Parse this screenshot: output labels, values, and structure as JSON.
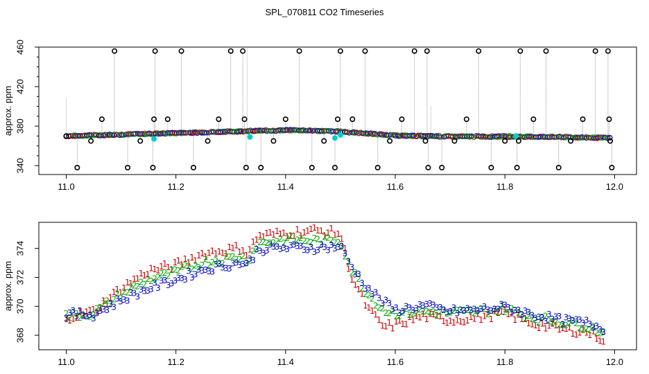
{
  "title": "SPL_070811  CO2 Timeseries",
  "chart_data": [
    {
      "type": "scatter",
      "ylabel": "approx. ppm",
      "xlim": [
        10.95,
        12.04
      ],
      "ylim": [
        331,
        460
      ],
      "xticks": [
        11.0,
        11.2,
        11.4,
        11.6,
        11.8,
        12.0
      ],
      "xtick_labels": [
        "11.0",
        "11.2",
        "11.4",
        "11.6",
        "11.8",
        "12.0"
      ],
      "yticks": [
        340,
        380,
        420,
        460
      ],
      "ytick_labels": [
        "340",
        "380",
        "420",
        "460"
      ],
      "baseline": [
        [
          11.0,
          370.0
        ],
        [
          11.1,
          371.5
        ],
        [
          11.2,
          373.0
        ],
        [
          11.33,
          375.0
        ],
        [
          11.42,
          376.0
        ],
        [
          11.5,
          374.5
        ],
        [
          11.6,
          370.5
        ],
        [
          11.7,
          369.5
        ],
        [
          11.8,
          369.5
        ],
        [
          11.9,
          369.0
        ],
        [
          11.99,
          368.0
        ]
      ],
      "series": [
        {
          "name": "1",
          "color": "#cc0000",
          "symbol": "circle"
        },
        {
          "name": "2",
          "color": "#00aa00",
          "symbol": "circle"
        },
        {
          "name": "3",
          "color": "#0000cc",
          "symbol": "circle"
        }
      ],
      "outliers": [
        {
          "x": 11.0,
          "y": 370
        },
        {
          "x": 11.02,
          "y": 338
        },
        {
          "x": 11.045,
          "y": 365
        },
        {
          "x": 11.065,
          "y": 387
        },
        {
          "x": 11.088,
          "y": 456
        },
        {
          "x": 11.112,
          "y": 338
        },
        {
          "x": 11.135,
          "y": 365
        },
        {
          "x": 11.158,
          "y": 338
        },
        {
          "x": 11.16,
          "y": 387
        },
        {
          "x": 11.162,
          "y": 456
        },
        {
          "x": 11.185,
          "y": 387
        },
        {
          "x": 11.21,
          "y": 456
        },
        {
          "x": 11.232,
          "y": 338
        },
        {
          "x": 11.258,
          "y": 365
        },
        {
          "x": 11.278,
          "y": 387
        },
        {
          "x": 11.3,
          "y": 456
        },
        {
          "x": 11.322,
          "y": 456
        },
        {
          "x": 11.325,
          "y": 387
        },
        {
          "x": 11.328,
          "y": 338
        },
        {
          "x": 11.355,
          "y": 338
        },
        {
          "x": 11.378,
          "y": 365
        },
        {
          "x": 11.4,
          "y": 387
        },
        {
          "x": 11.425,
          "y": 456
        },
        {
          "x": 11.448,
          "y": 338
        },
        {
          "x": 11.47,
          "y": 365
        },
        {
          "x": 11.49,
          "y": 338
        },
        {
          "x": 11.495,
          "y": 387
        },
        {
          "x": 11.5,
          "y": 456
        },
        {
          "x": 11.522,
          "y": 387
        },
        {
          "x": 11.545,
          "y": 456
        },
        {
          "x": 11.568,
          "y": 338
        },
        {
          "x": 11.59,
          "y": 365
        },
        {
          "x": 11.612,
          "y": 387
        },
        {
          "x": 11.635,
          "y": 456
        },
        {
          "x": 11.655,
          "y": 365
        },
        {
          "x": 11.658,
          "y": 456
        },
        {
          "x": 11.66,
          "y": 338
        },
        {
          "x": 11.685,
          "y": 338
        },
        {
          "x": 11.708,
          "y": 365
        },
        {
          "x": 11.73,
          "y": 387
        },
        {
          "x": 11.752,
          "y": 456
        },
        {
          "x": 11.775,
          "y": 338
        },
        {
          "x": 11.8,
          "y": 365
        },
        {
          "x": 11.822,
          "y": 338
        },
        {
          "x": 11.825,
          "y": 365
        },
        {
          "x": 11.828,
          "y": 456
        },
        {
          "x": 11.852,
          "y": 387
        },
        {
          "x": 11.875,
          "y": 456
        },
        {
          "x": 11.898,
          "y": 338
        },
        {
          "x": 11.92,
          "y": 365
        },
        {
          "x": 11.942,
          "y": 387
        },
        {
          "x": 11.965,
          "y": 456
        },
        {
          "x": 11.988,
          "y": 456
        },
        {
          "x": 11.99,
          "y": 387
        },
        {
          "x": 11.992,
          "y": 365
        },
        {
          "x": 11.995,
          "y": 338
        }
      ]
    },
    {
      "type": "scatter",
      "ylabel": "approx. ppm",
      "xlim": [
        10.95,
        12.04
      ],
      "ylim": [
        367.0,
        375.8
      ],
      "xticks": [
        11.0,
        11.2,
        11.4,
        11.6,
        11.8,
        12.0
      ],
      "xtick_labels": [
        "11.0",
        "11.2",
        "11.4",
        "11.6",
        "11.8",
        "12.0"
      ],
      "yticks": [
        368,
        370,
        372,
        374
      ],
      "ytick_labels": [
        "368",
        "370",
        "372",
        "374"
      ],
      "series": [
        {
          "name": "1",
          "color": "#cc0000",
          "points": [
            [
              11.0,
              369.2
            ],
            [
              11.05,
              369.6
            ],
            [
              11.1,
              371.2
            ],
            [
              11.15,
              372.4
            ],
            [
              11.2,
              372.8
            ],
            [
              11.25,
              373.6
            ],
            [
              11.32,
              374.0
            ],
            [
              11.33,
              373.6
            ],
            [
              11.35,
              374.8
            ],
            [
              11.4,
              375.0
            ],
            [
              11.45,
              375.2
            ],
            [
              11.5,
              375.0
            ],
            [
              11.52,
              372.0
            ],
            [
              11.55,
              369.8
            ],
            [
              11.58,
              368.5
            ],
            [
              11.6,
              368.7
            ],
            [
              11.65,
              369.3
            ],
            [
              11.7,
              369.0
            ],
            [
              11.75,
              369.2
            ],
            [
              11.8,
              369.5
            ],
            [
              11.85,
              368.8
            ],
            [
              11.9,
              368.4
            ],
            [
              11.95,
              368.2
            ],
            [
              11.99,
              367.5
            ]
          ]
        },
        {
          "name": "2",
          "color": "#00aa00",
          "points": [
            [
              11.0,
              369.3
            ],
            [
              11.05,
              369.5
            ],
            [
              11.1,
              370.8
            ],
            [
              11.15,
              371.8
            ],
            [
              11.2,
              372.3
            ],
            [
              11.25,
              373.0
            ],
            [
              11.32,
              373.4
            ],
            [
              11.33,
              373.1
            ],
            [
              11.35,
              374.3
            ],
            [
              11.4,
              374.6
            ],
            [
              11.45,
              374.5
            ],
            [
              11.5,
              374.5
            ],
            [
              11.52,
              372.5
            ],
            [
              11.55,
              370.8
            ],
            [
              11.58,
              369.7
            ],
            [
              11.6,
              369.5
            ],
            [
              11.65,
              369.6
            ],
            [
              11.7,
              369.5
            ],
            [
              11.75,
              369.6
            ],
            [
              11.8,
              369.8
            ],
            [
              11.85,
              369.2
            ],
            [
              11.9,
              368.9
            ],
            [
              11.95,
              368.6
            ],
            [
              11.99,
              368.0
            ]
          ]
        },
        {
          "name": "3",
          "color": "#0000cc",
          "points": [
            [
              11.0,
              369.4
            ],
            [
              11.05,
              369.4
            ],
            [
              11.1,
              370.4
            ],
            [
              11.15,
              371.2
            ],
            [
              11.2,
              371.8
            ],
            [
              11.25,
              372.5
            ],
            [
              11.32,
              373.0
            ],
            [
              11.33,
              372.8
            ],
            [
              11.35,
              373.9
            ],
            [
              11.4,
              374.0
            ],
            [
              11.45,
              374.0
            ],
            [
              11.5,
              374.1
            ],
            [
              11.52,
              372.7
            ],
            [
              11.55,
              371.2
            ],
            [
              11.58,
              370.2
            ],
            [
              11.6,
              369.7
            ],
            [
              11.65,
              370.0
            ],
            [
              11.7,
              369.6
            ],
            [
              11.75,
              369.7
            ],
            [
              11.8,
              369.9
            ],
            [
              11.85,
              369.4
            ],
            [
              11.9,
              369.0
            ],
            [
              11.95,
              368.8
            ],
            [
              11.99,
              368.3
            ]
          ]
        }
      ]
    }
  ]
}
